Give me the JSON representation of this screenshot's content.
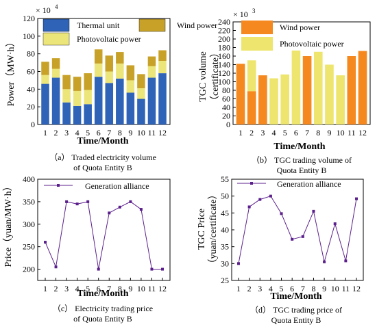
{
  "chart_data": [
    {
      "type": "bar",
      "stacked": true,
      "caption": "（a） Traded electricity volume of Quota Entity B",
      "caption_lines": [
        "（a） Traded electricity volume",
        "of Quota Entity B"
      ],
      "xlabel": "Time/Month",
      "ylabel": "Power（MW·h）",
      "multiplier": "× 10",
      "multiplier_exp": "4",
      "categories": [
        "1",
        "2",
        "3",
        "4",
        "5",
        "6",
        "7",
        "8",
        "9",
        "10",
        "11",
        "12"
      ],
      "ylim": [
        0,
        120
      ],
      "yticks": [
        "0",
        "20",
        "40",
        "60",
        "80",
        "100",
        "120"
      ],
      "series": [
        {
          "name": "Thermal unit",
          "color": "#2e63b8",
          "values": [
            46,
            53,
            25,
            21,
            23,
            54,
            47,
            52,
            36,
            29,
            53,
            58
          ]
        },
        {
          "name": "Photovoltaic power",
          "color": "#ece67a",
          "values": [
            10,
            10,
            15,
            17,
            16,
            15,
            13,
            17,
            14,
            12,
            13,
            14
          ]
        },
        {
          "name": "Wind power",
          "color": "#c8a228",
          "values": [
            15,
            12,
            16,
            16,
            19,
            16,
            18,
            13,
            17,
            16,
            11,
            12
          ]
        }
      ],
      "grid": false,
      "legend_position": "top"
    },
    {
      "type": "bar",
      "caption": "（b） TGC trading volume of Quota Entity B",
      "caption_lines": [
        "（b） TGC trading volume of",
        "Quota Entity B"
      ],
      "xlabel": "Time/Month",
      "ylabel": "TGC volume（certificate）",
      "ylabel_lines": [
        "TGC volume",
        "（certificate）"
      ],
      "multiplier": "× 10",
      "multiplier_exp": "3",
      "categories": [
        "1",
        "2",
        "3",
        "4",
        "5",
        "6",
        "7",
        "8",
        "9",
        "10",
        "11",
        "12"
      ],
      "ylim": [
        0,
        240
      ],
      "yticks": [
        "0",
        "20",
        "40",
        "60",
        "80",
        "100",
        "120",
        "140",
        "160",
        "180",
        "200",
        "220",
        "240"
      ],
      "series": [
        {
          "name": "Wind power",
          "color": "#f5891f",
          "values": [
            142,
            78,
            115,
            0,
            0,
            0,
            160,
            0,
            0,
            0,
            160,
            172
          ]
        },
        {
          "name": "Photovoltaic power",
          "color": "#ede56e",
          "values": [
            0,
            72,
            0,
            108,
            117,
            173,
            0,
            170,
            140,
            115,
            0,
            0
          ]
        }
      ],
      "grid": false,
      "legend_position": "top"
    },
    {
      "type": "line",
      "caption": "（c） Electricity trading price of Quota Entity B",
      "caption_lines": [
        "（c） Electricity trading price",
        "of Quota Entity B"
      ],
      "xlabel": "Time/Month",
      "ylabel": "Price（yuan/MW·h）",
      "x": [
        "1",
        "2",
        "3",
        "4",
        "5",
        "6",
        "7",
        "8",
        "9",
        "10",
        "11",
        "12"
      ],
      "ylim": [
        175,
        400
      ],
      "yticks": [
        "200",
        "250",
        "300",
        "350",
        "400"
      ],
      "series": [
        {
          "name": "Generation alliance",
          "color": "#5b1f8c",
          "values": [
            260,
            205,
            350,
            345,
            350,
            200,
            325,
            338,
            350,
            333,
            200,
            200
          ]
        }
      ],
      "grid": false,
      "legend_position": "top"
    },
    {
      "type": "line",
      "caption": "（d） TGC trading price of Quota Entity B",
      "caption_lines": [
        "（d） TGC trading price of",
        "Quota Entity B"
      ],
      "xlabel": "Time/Month",
      "ylabel": "TGC Price（yuan/certificate）",
      "ylabel_lines": [
        "TGC Price",
        "（yuan/certificate）"
      ],
      "x": [
        "1",
        "2",
        "3",
        "4",
        "5",
        "6",
        "7",
        "8",
        "9",
        "10",
        "11",
        "12"
      ],
      "ylim": [
        25,
        55
      ],
      "yticks": [
        "25",
        "30",
        "35",
        "40",
        "45",
        "50",
        "55"
      ],
      "series": [
        {
          "name": "Generation alliance",
          "color": "#5b1f8c",
          "values": [
            30,
            46.8,
            49,
            50,
            44.8,
            37.2,
            38,
            45.5,
            30.5,
            41.8,
            30.8,
            49.2
          ]
        }
      ],
      "grid": false,
      "legend_position": "top"
    }
  ]
}
